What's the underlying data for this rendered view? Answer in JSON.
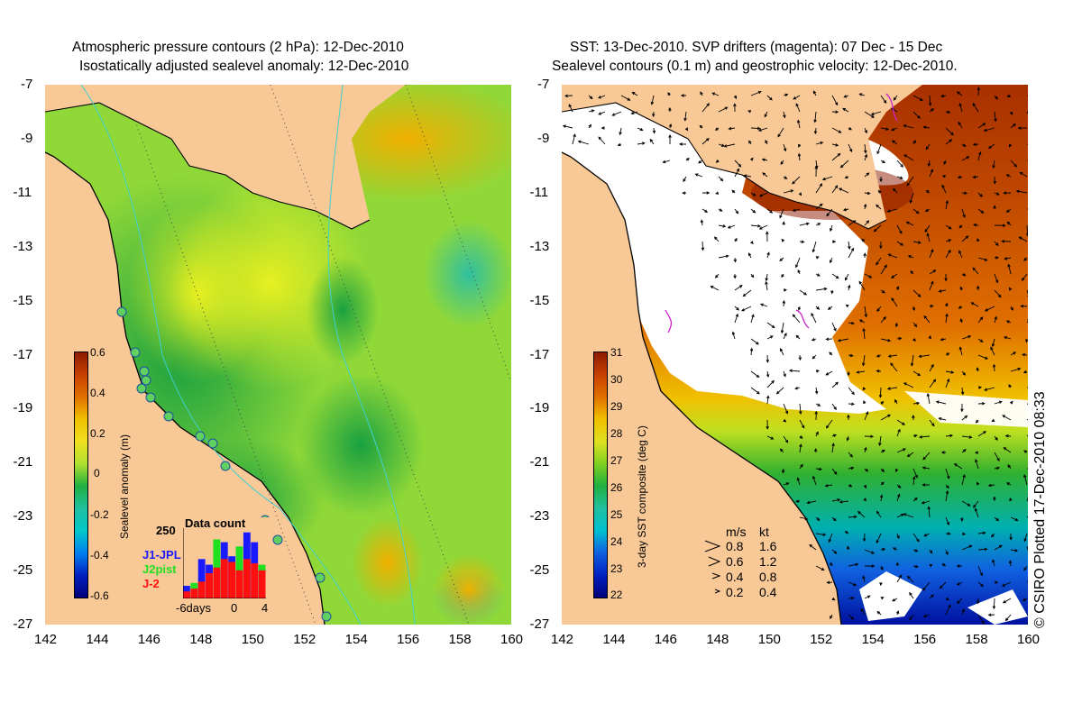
{
  "left_panel": {
    "title_line1": "Atmospheric pressure contours (2 hPa): 12-Dec-2010",
    "title_line2": "Isostatically adjusted sealevel anomaly: 12-Dec-2010",
    "colorbar_label": "Sealevel anomaly (m)",
    "colorbar_ticks": [
      "0.6",
      "0.4",
      "0.2",
      "0",
      "-0.2",
      "-0.4",
      "-0.6"
    ],
    "inset": {
      "title": "Data count",
      "y_max_label": "250",
      "x_labels": [
        "-6days",
        "0",
        "4"
      ],
      "legend": [
        {
          "label": "J1-JPL",
          "color": "#1a1aff"
        },
        {
          "label": "J2pist",
          "color": "#20e020"
        },
        {
          "label": "J-2",
          "color": "#ff1010"
        }
      ],
      "bars_total": [
        45,
        55,
        140,
        120,
        210,
        200,
        150,
        185,
        235,
        200,
        120
      ],
      "bars_red": [
        25,
        35,
        60,
        90,
        110,
        140,
        130,
        100,
        140,
        125,
        100
      ]
    }
  },
  "right_panel": {
    "title_line1": "SST: 13-Dec-2010. SVP drifters (magenta): 07 Dec - 15 Dec",
    "title_line2": "Sealevel contours (0.1 m) and geostrophic velocity: 12-Dec-2010.",
    "colorbar_label": "3-day SST composite (deg C)",
    "colorbar_ticks": [
      "31",
      "30",
      "29",
      "28",
      "27",
      "26",
      "25",
      "24",
      "23",
      "22"
    ],
    "speed_legend": {
      "header_ms": "m/s",
      "header_kt": "kt",
      "rows": [
        {
          "ms": "0.8",
          "kt": "1.6"
        },
        {
          "ms": "0.6",
          "kt": "1.2"
        },
        {
          "ms": "0.4",
          "kt": "0.8"
        },
        {
          "ms": "0.2",
          "kt": "0.4"
        }
      ]
    },
    "copyright": "© CSIRO Plotted 17-Dec-2010 08:33"
  },
  "axes": {
    "y_ticks": [
      "-7",
      "-9",
      "-11",
      "-13",
      "-15",
      "-17",
      "-19",
      "-21",
      "-23",
      "-25",
      "-27"
    ],
    "x_ticks": [
      "142",
      "144",
      "146",
      "148",
      "150",
      "152",
      "154",
      "156",
      "158",
      "160"
    ]
  },
  "colors": {
    "land": "#f8c896",
    "sla_colormap": [
      "#00007a",
      "#0050e0",
      "#00c8c8",
      "#20b040",
      "#b0e030",
      "#f0d000",
      "#e07000",
      "#8b1a00"
    ],
    "sst_colormap": [
      "#00007a",
      "#1060e0",
      "#00c0c0",
      "#20b040",
      "#c0e020",
      "#f0c000",
      "#e06000",
      "#8b1a00"
    ]
  }
}
